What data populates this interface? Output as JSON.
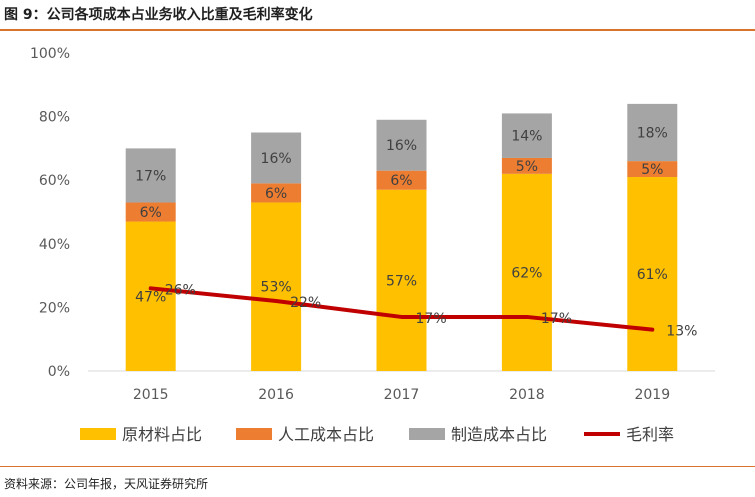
{
  "figure": {
    "title": "图 9：公司各项成本占业务收入比重及毛利率变化",
    "source": "资料来源：公司年报，天风证券研究所"
  },
  "chart_data": {
    "type": "bar",
    "stacked": true,
    "categories": [
      "2015",
      "2016",
      "2017",
      "2018",
      "2019"
    ],
    "yticks": [
      "0%",
      "20%",
      "40%",
      "60%",
      "80%",
      "100%"
    ],
    "ylim": [
      0,
      100
    ],
    "series": [
      {
        "name": "原材料占比",
        "kind": "bar",
        "color": "#ffc000",
        "values": [
          47,
          53,
          57,
          62,
          61
        ],
        "labels": [
          "47%",
          "53%",
          "57%",
          "62%",
          "61%"
        ]
      },
      {
        "name": "人工成本占比",
        "kind": "bar",
        "color": "#ed7d31",
        "values": [
          6,
          6,
          6,
          5,
          5
        ],
        "labels": [
          "6%",
          "6%",
          "6%",
          "5%",
          "5%"
        ]
      },
      {
        "name": "制造成本占比",
        "kind": "bar",
        "color": "#a5a5a5",
        "values": [
          17,
          16,
          16,
          14,
          18
        ],
        "labels": [
          "17%",
          "16%",
          "16%",
          "14%",
          "18%"
        ]
      },
      {
        "name": "毛利率",
        "kind": "line",
        "color": "#c00000",
        "values": [
          26,
          22,
          17,
          17,
          13
        ],
        "labels": [
          "26%",
          "22%",
          "17%",
          "17%",
          "13%"
        ]
      }
    ],
    "legend_position": "bottom",
    "grid": false
  }
}
